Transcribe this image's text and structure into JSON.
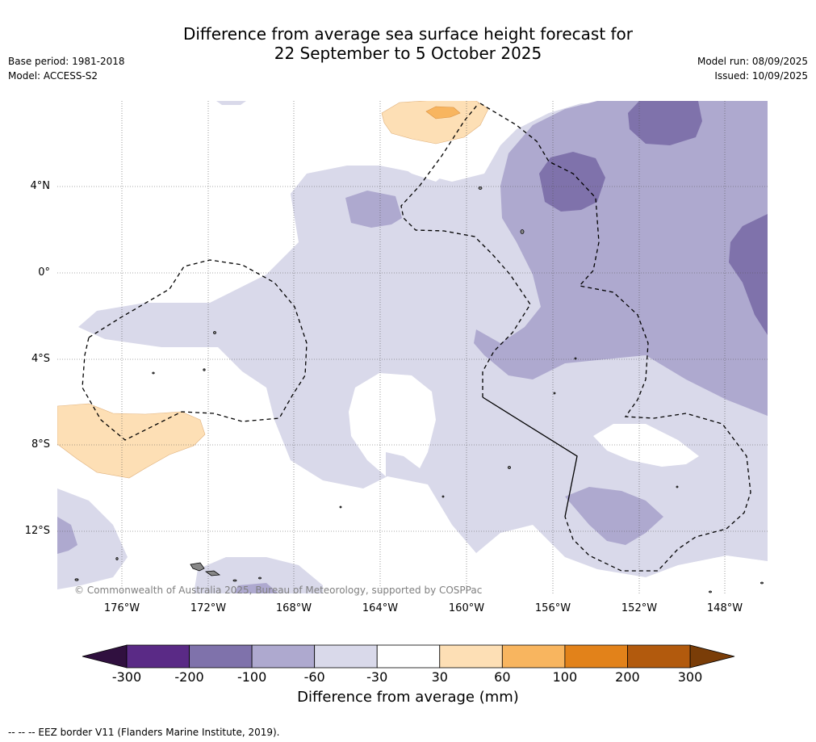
{
  "title_line1": "Difference from average sea surface height forecast for",
  "title_line2": "22 September to 5 October 2025",
  "base_period": "Base period: 1981-2018",
  "model": "Model: ACCESS-S2",
  "model_run": "Model run: 08/09/2025",
  "issued": "Issued: 10/09/2025",
  "latitude_labels": [
    "4°N",
    "0°",
    "4°S",
    "8°S",
    "12°S"
  ],
  "longitude_labels": [
    "176°W",
    "172°W",
    "168°W",
    "164°W",
    "160°W",
    "156°W",
    "152°W",
    "148°W"
  ],
  "copyright": "© Commonwealth of Australia 2025, Bureau of Meteorology, supported by COSPPac",
  "colorbar": {
    "ticks": [
      "-300",
      "-200",
      "-100",
      "-60",
      "-30",
      "30",
      "60",
      "100",
      "200",
      "300"
    ],
    "colors": [
      "#5a2a86",
      "#7f72ab",
      "#aea9cf",
      "#d9d9ea",
      "#ffffff",
      "#fddfb5",
      "#f8b55f",
      "#e2821a",
      "#b25a0d"
    ],
    "low_extend_color": "#30103f",
    "high_extend_color": "#7a3d08",
    "label": "Difference from average (mm)"
  },
  "footnote": "--  --  -- EEZ border V11 (Flanders Marine Institute, 2019)."
}
